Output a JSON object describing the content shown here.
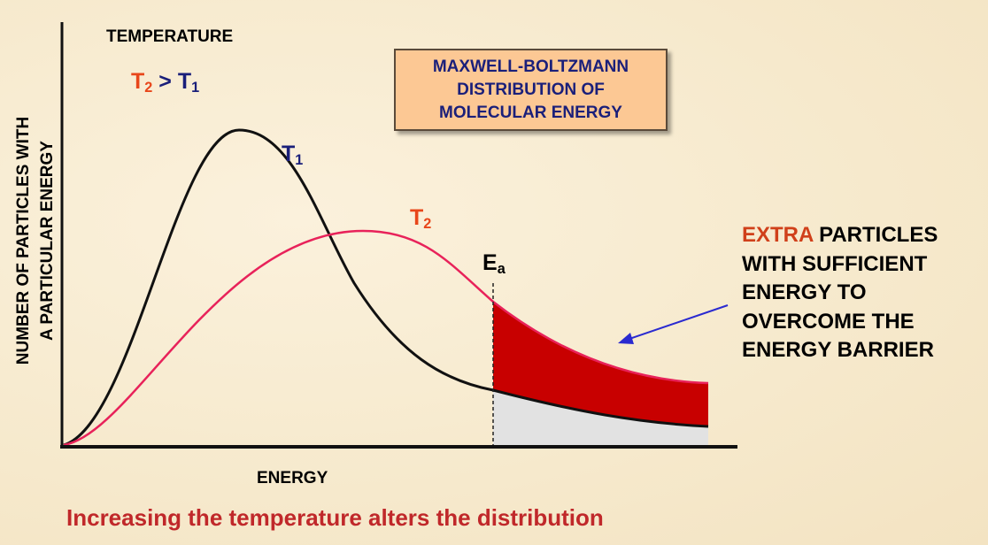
{
  "colors": {
    "t1": "#1a1f7a",
    "t2": "#e8461a",
    "curve_t2": "#e8225a",
    "extra_fill": "#c80000",
    "lower_fill": "#e2e2e2",
    "caption": "#c0282a",
    "arrow": "#2a2ad0",
    "box_fill": "#fcc894"
  },
  "y_axis_label": {
    "line1": "NUMBER OF PARTICLES WITH",
    "line2": "A PARTICULAR ENERGY"
  },
  "x_axis_label": "ENERGY",
  "temperature_heading": "TEMPERATURE",
  "relation": {
    "t2": "T",
    "t2_sub": "2",
    "gt": ">",
    "t1": "T",
    "t1_sub": "1"
  },
  "title_box": {
    "line1": "MAXWELL-BOLTZMANN",
    "line2": "DISTRIBUTION OF",
    "line3": "MOLECULAR ENERGY"
  },
  "curve_labels": {
    "t1": "T",
    "t1_sub": "1",
    "t2": "T",
    "t2_sub": "2"
  },
  "activation": {
    "label": "E",
    "sub": "a"
  },
  "annotation": {
    "highlight": "EXTRA",
    "line1_rest": " PARTICLES",
    "line2": "WITH SUFFICIENT",
    "line3": "ENERGY TO",
    "line4": "OVERCOME THE",
    "line5": "ENERGY BARRIER"
  },
  "caption": "Increasing the temperature alters the distribution"
}
